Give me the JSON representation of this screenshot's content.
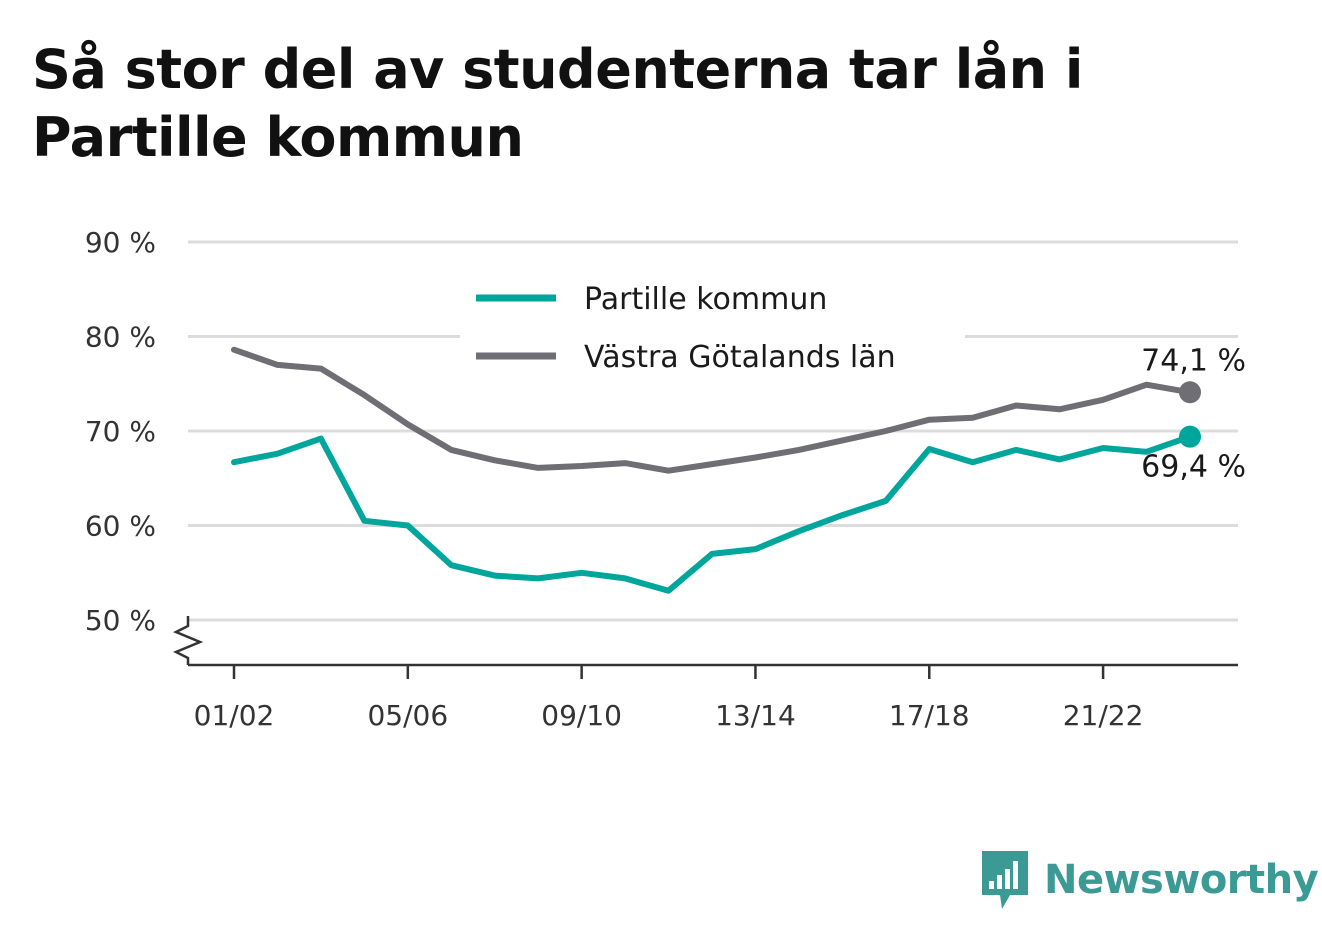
{
  "title": "Så stor del av studenterna tar lån i Partille kommun",
  "brand": {
    "name": "Newsworthy",
    "icon": "newsworthy-logo-icon",
    "color": "#3b9a94"
  },
  "chart_data": {
    "type": "line",
    "x": [
      "01/02",
      "02/03",
      "03/04",
      "04/05",
      "05/06",
      "06/07",
      "07/08",
      "08/09",
      "09/10",
      "10/11",
      "11/12",
      "12/13",
      "13/14",
      "14/15",
      "15/16",
      "16/17",
      "17/18",
      "18/19",
      "19/20",
      "20/21",
      "21/22",
      "22/23",
      "23/24"
    ],
    "x_tick_labels": [
      "01/02",
      "05/06",
      "09/10",
      "13/14",
      "17/18",
      "21/22"
    ],
    "y_ticks": [
      50,
      60,
      70,
      80,
      90
    ],
    "y_tick_labels": [
      "50 %",
      "60 %",
      "70 %",
      "80 %",
      "90 %"
    ],
    "ylim": [
      45,
      90
    ],
    "axis_break": true,
    "grid": true,
    "legend_position": "top-center",
    "series": [
      {
        "name": "Partille kommun",
        "color": "#00a69c",
        "values": [
          66.7,
          67.6,
          69.2,
          60.5,
          60.0,
          55.8,
          54.7,
          54.4,
          55.0,
          54.4,
          53.1,
          57.0,
          57.5,
          59.4,
          61.1,
          62.6,
          68.1,
          66.7,
          68.0,
          67.0,
          68.2,
          67.8,
          69.4
        ],
        "end_label": "69,4 %"
      },
      {
        "name": "Västra Götalands län",
        "color": "#6e6e74",
        "values": [
          78.6,
          77.0,
          76.6,
          73.8,
          70.7,
          68.0,
          66.9,
          66.1,
          66.3,
          66.6,
          65.8,
          66.5,
          67.2,
          68.0,
          69.0,
          70.0,
          71.2,
          71.4,
          72.7,
          72.3,
          73.3,
          74.9,
          74.1
        ],
        "end_label": "74,1 %"
      }
    ]
  }
}
